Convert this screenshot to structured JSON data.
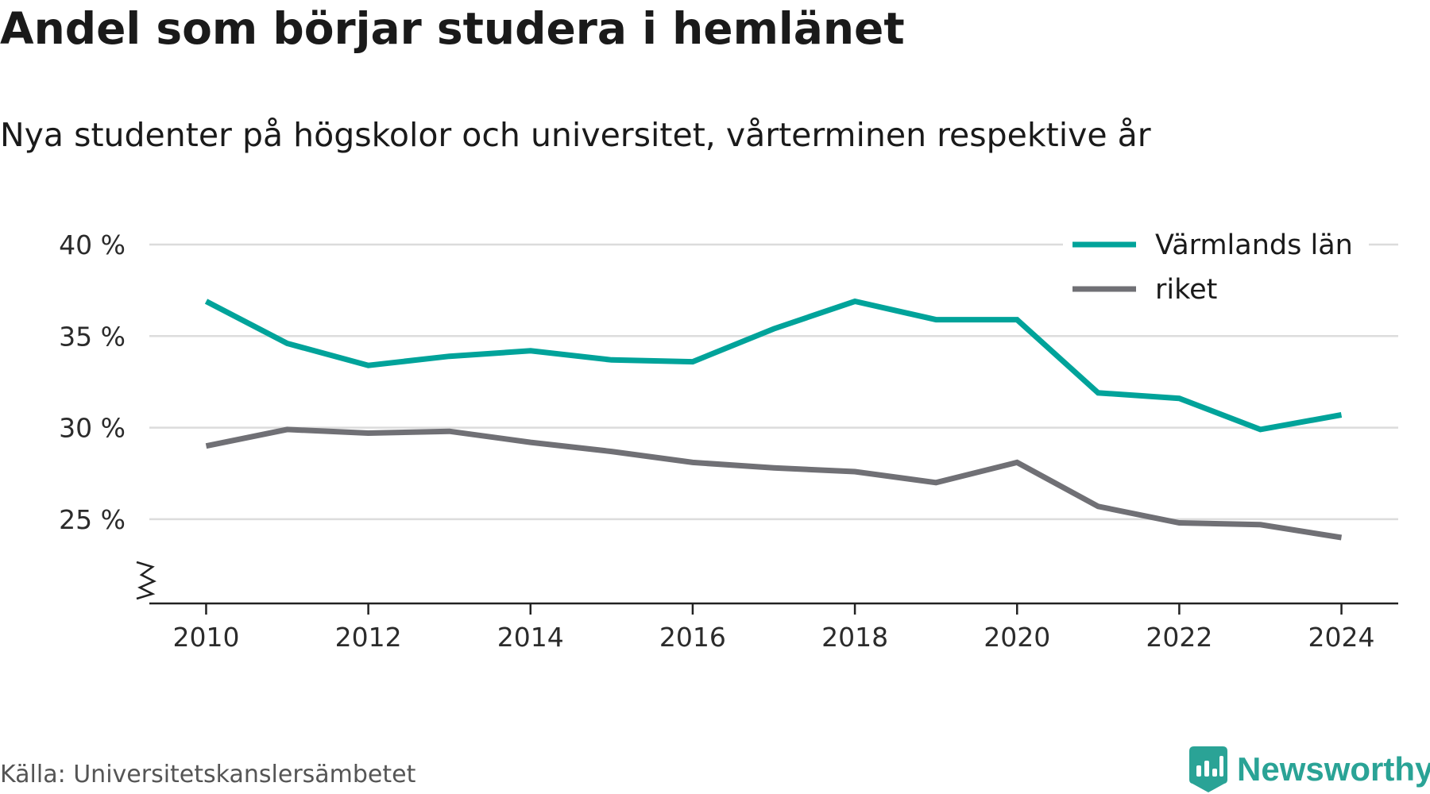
{
  "chart_data": {
    "type": "line",
    "title": "Andel som börjar studera i hemlänet",
    "subtitle": "Nya studenter på högskolor och universitet, vårterminen respektive år",
    "x": [
      2010,
      2011,
      2012,
      2013,
      2014,
      2015,
      2016,
      2017,
      2018,
      2019,
      2020,
      2021,
      2022,
      2023,
      2024
    ],
    "series": [
      {
        "name": "Värmlands län",
        "color": "#00a39a",
        "values": [
          36.9,
          34.6,
          33.4,
          33.9,
          34.2,
          33.7,
          33.6,
          35.4,
          36.9,
          35.9,
          35.9,
          31.9,
          31.6,
          29.9,
          30.7
        ]
      },
      {
        "name": "riket",
        "color": "#707075",
        "values": [
          29.0,
          29.9,
          29.7,
          29.8,
          29.2,
          28.7,
          28.1,
          27.8,
          27.6,
          27.0,
          28.1,
          25.7,
          24.8,
          24.7,
          24.0
        ]
      }
    ],
    "xticks": [
      "2010",
      "2012",
      "2014",
      "2016",
      "2018",
      "2020",
      "2022",
      "2024"
    ],
    "yticks": [
      "25 %",
      "30 %",
      "35 %",
      "40 %"
    ],
    "ytick_values": [
      25,
      30,
      35,
      40
    ],
    "ylim": [
      20.4,
      40
    ],
    "xlim": [
      2009.3,
      2024.7
    ],
    "grid": true,
    "legend_position": "top-right",
    "y_axis_break": true
  },
  "source": "Källa: Universitetskanslersämbetet",
  "brand": {
    "name": "Newsworthy",
    "color": "#2aa396"
  }
}
